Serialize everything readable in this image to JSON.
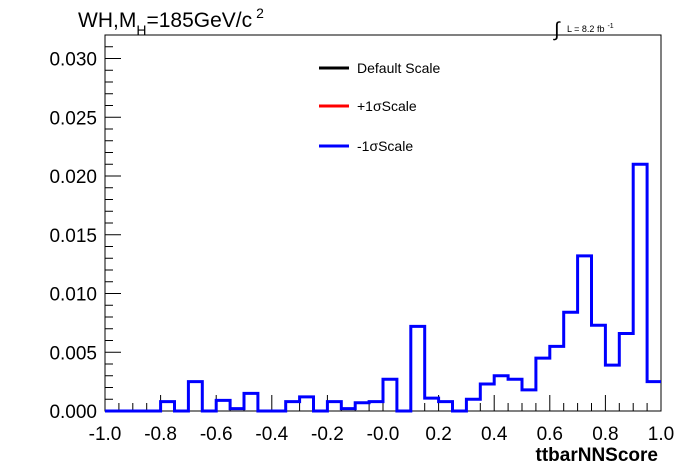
{
  "title": {
    "prefix": "WH,M",
    "sub": "H",
    "mid": "=185GeV/c",
    "sup": "2"
  },
  "lumi": {
    "integral_sign": "∫",
    "text": "L = 8.2 fb",
    "sup": "-1"
  },
  "chart_data": {
    "type": "histogram-step",
    "xlabel": "ttbarNNScore",
    "ylabel": "",
    "xlim": [
      -1.0,
      1.0
    ],
    "ylim": [
      0.0,
      0.032
    ],
    "x_ticks": [
      "-1.0",
      "-0.8",
      "-0.6",
      "-0.4",
      "-0.2",
      "-0.0",
      "0.2",
      "0.4",
      "0.6",
      "0.8",
      "1.0"
    ],
    "y_ticks": [
      "0.000",
      "0.005",
      "0.010",
      "0.015",
      "0.020",
      "0.025",
      "0.030"
    ],
    "bin_width": 0.05,
    "bin_start": -1.0,
    "legend": [
      {
        "name": "Default Scale",
        "color": "#000000"
      },
      {
        "name": "+1σScale",
        "color": "#ff0000"
      },
      {
        "name": "-1σScale",
        "color": "#0000ff"
      }
    ],
    "series": [
      {
        "name": "-1σScale",
        "color": "#0000ff",
        "values": [
          0.0,
          0.0,
          0.0,
          0.0,
          0.0008,
          0.0,
          0.0025,
          0.0,
          0.0009,
          0.0002,
          0.0015,
          0.0,
          0.0,
          0.0008,
          0.0012,
          0.0,
          0.0008,
          0.0002,
          0.0007,
          0.0008,
          0.0027,
          0.0,
          0.0072,
          0.0011,
          0.0008,
          0.0,
          0.001,
          0.0023,
          0.003,
          0.0027,
          0.0018,
          0.0045,
          0.0055,
          0.0084,
          0.0132,
          0.0073,
          0.0039,
          0.0066,
          0.021,
          0.0025
        ]
      }
    ]
  }
}
